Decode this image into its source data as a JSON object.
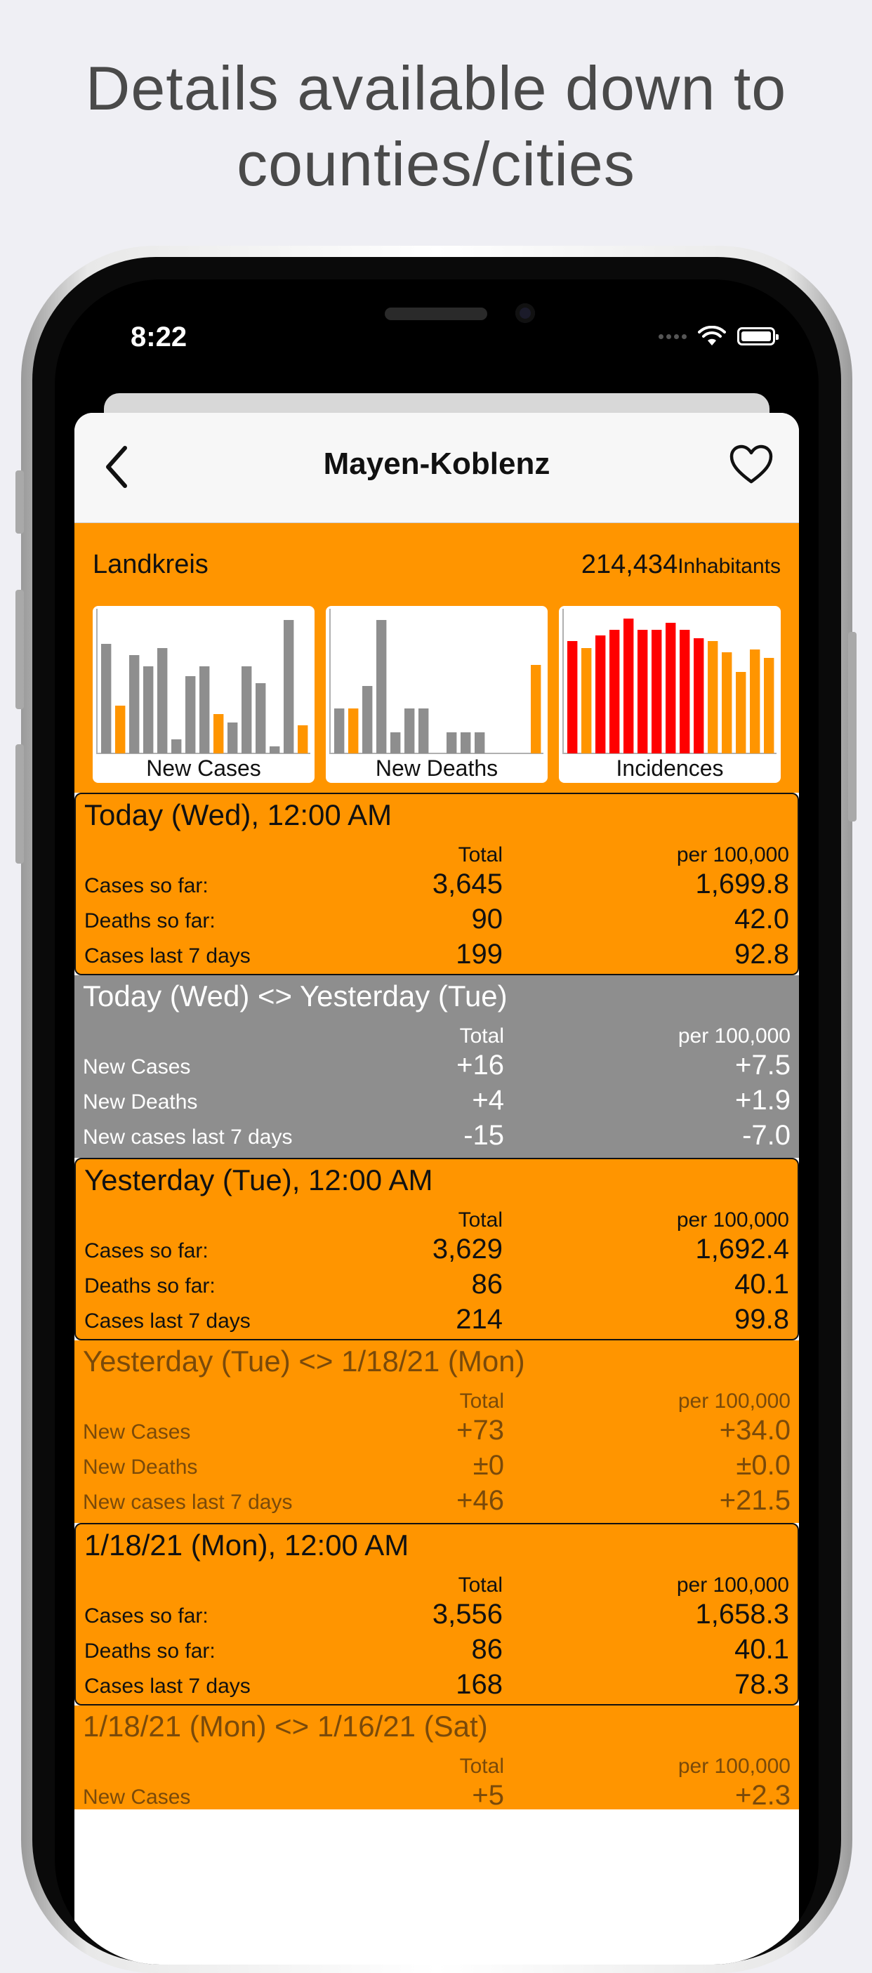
{
  "headline_line1": "Details available down to",
  "headline_line2": "counties/cities",
  "status": {
    "time": "8:22"
  },
  "nav": {
    "title": "Mayen-Koblenz"
  },
  "summary": {
    "kind": "Landkreis",
    "population": "214,434",
    "population_label": "Inhabitants"
  },
  "charts": [
    {
      "caption": "New Cases",
      "bars": [
        78,
        34,
        70,
        62,
        75,
        10,
        55,
        62,
        28,
        22,
        62,
        50,
        5,
        95,
        20
      ],
      "colors": [
        "gray",
        "orange",
        "gray",
        "gray",
        "gray",
        "gray",
        "gray",
        "gray",
        "orange",
        "gray",
        "gray",
        "gray",
        "gray",
        "gray",
        "orange"
      ]
    },
    {
      "caption": "New Deaths",
      "bars": [
        32,
        32,
        48,
        95,
        15,
        32,
        32,
        0,
        15,
        15,
        15,
        0,
        0,
        0,
        63
      ],
      "colors": [
        "gray",
        "orange",
        "gray",
        "gray",
        "gray",
        "gray",
        "gray",
        "gray",
        "gray",
        "gray",
        "gray",
        "gray",
        "gray",
        "gray",
        "orange"
      ]
    },
    {
      "caption": "Incidences",
      "bars": [
        80,
        75,
        84,
        88,
        96,
        88,
        88,
        93,
        88,
        82,
        80,
        72,
        58,
        74,
        68
      ],
      "colors": [
        "red",
        "orange",
        "red",
        "red",
        "red",
        "red",
        "red",
        "red",
        "red",
        "red",
        "orange",
        "orange",
        "orange",
        "orange",
        "orange"
      ]
    }
  ],
  "colors": {
    "orange": "#ff9500",
    "gray": "#8e8e8e",
    "red": "#ff0000"
  },
  "blocks": [
    {
      "style": "orange",
      "title": "Today (Wed), 12:00 AM",
      "col_total": "Total",
      "col_per": "per 100,000",
      "rows": [
        {
          "label": "Cases so far:",
          "total": "3,645",
          "per": "1,699.8"
        },
        {
          "label": "Deaths so far:",
          "total": "90",
          "per": "42.0"
        },
        {
          "label": "Cases last 7 days",
          "total": "199",
          "per": "92.8"
        }
      ]
    },
    {
      "style": "gray",
      "title": "Today (Wed) <> Yesterday (Tue)",
      "col_total": "Total",
      "col_per": "per 100,000",
      "rows": [
        {
          "label": "New Cases",
          "total": "+16",
          "per": "+7.5"
        },
        {
          "label": "New Deaths",
          "total": "+4",
          "per": "+1.9"
        },
        {
          "label": "New cases last 7 days",
          "total": "-15",
          "per": "-7.0"
        }
      ]
    },
    {
      "style": "orange",
      "title": "Yesterday (Tue), 12:00 AM",
      "col_total": "Total",
      "col_per": "per 100,000",
      "rows": [
        {
          "label": "Cases so far:",
          "total": "3,629",
          "per": "1,692.4"
        },
        {
          "label": "Deaths so far:",
          "total": "86",
          "per": "40.1"
        },
        {
          "label": "Cases last 7 days",
          "total": "214",
          "per": "99.8"
        }
      ]
    },
    {
      "style": "orange2",
      "title": "Yesterday (Tue) <> 1/18/21 (Mon)",
      "col_total": "Total",
      "col_per": "per 100,000",
      "rows": [
        {
          "label": "New Cases",
          "total": "+73",
          "per": "+34.0"
        },
        {
          "label": "New Deaths",
          "total": "±0",
          "per": "±0.0"
        },
        {
          "label": "New cases last 7 days",
          "total": "+46",
          "per": "+21.5"
        }
      ]
    },
    {
      "style": "orange",
      "title": "1/18/21 (Mon), 12:00 AM",
      "col_total": "Total",
      "col_per": "per 100,000",
      "rows": [
        {
          "label": "Cases so far:",
          "total": "3,556",
          "per": "1,658.3"
        },
        {
          "label": "Deaths so far:",
          "total": "86",
          "per": "40.1"
        },
        {
          "label": "Cases last 7 days",
          "total": "168",
          "per": "78.3"
        }
      ]
    },
    {
      "style": "orange2",
      "title": "1/18/21 (Mon) <> 1/16/21 (Sat)",
      "col_total": "Total",
      "col_per": "per 100,000",
      "rows": [
        {
          "label": "New Cases",
          "total": "+5",
          "per": "+2.3"
        }
      ]
    }
  ]
}
